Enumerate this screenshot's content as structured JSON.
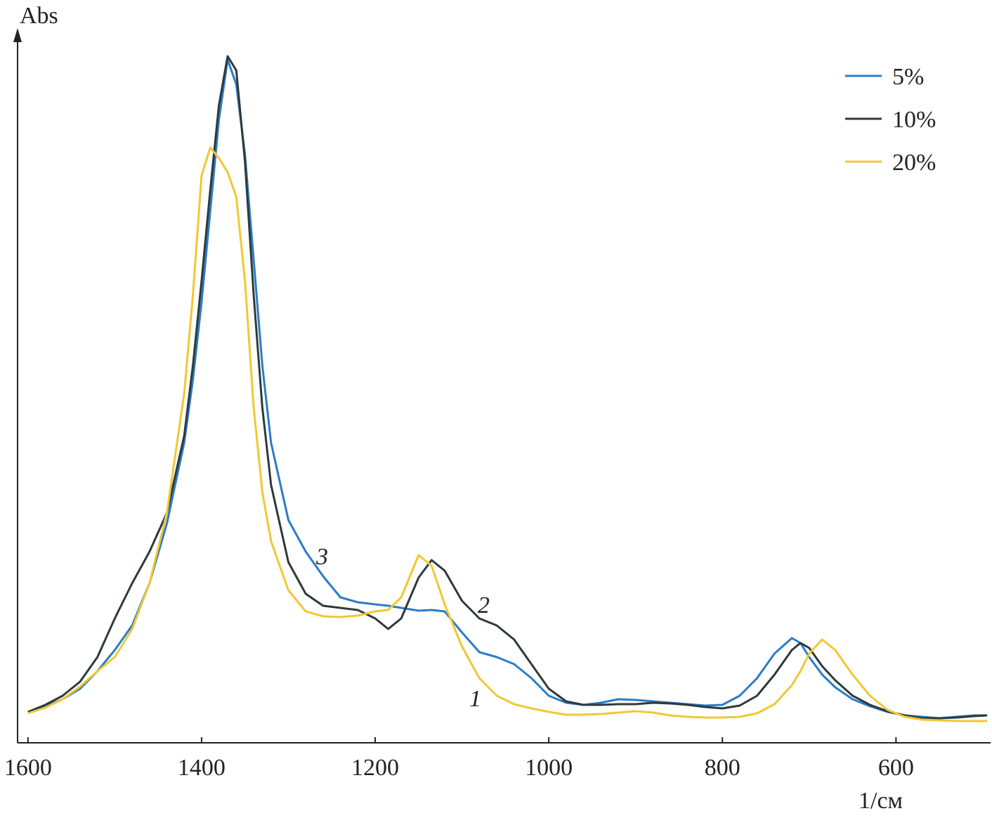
{
  "chart_data": {
    "type": "line",
    "y_label": "Abs",
    "x_label": "1/см",
    "xlim": [
      1612,
      491
    ],
    "ylim": [
      0,
      1
    ],
    "xticks": [
      1600,
      1400,
      1200,
      1000,
      800,
      600
    ],
    "legend": "top-right",
    "annotations": [
      "1",
      "2",
      "3"
    ],
    "x": [
      1600,
      1580,
      1560,
      1540,
      1520,
      1500,
      1480,
      1460,
      1440,
      1420,
      1410,
      1400,
      1390,
      1380,
      1370,
      1360,
      1350,
      1340,
      1330,
      1320,
      1300,
      1280,
      1260,
      1240,
      1220,
      1200,
      1185,
      1170,
      1150,
      1135,
      1120,
      1100,
      1080,
      1060,
      1040,
      1020,
      1000,
      980,
      960,
      940,
      920,
      900,
      880,
      860,
      840,
      820,
      800,
      780,
      760,
      740,
      720,
      710,
      700,
      685,
      670,
      650,
      630,
      610,
      590,
      570,
      550,
      530,
      510,
      495
    ],
    "series": [
      {
        "name": "5%",
        "color": "#2a7cc7",
        "values": [
          0.044,
          0.052,
          0.062,
          0.077,
          0.102,
          0.132,
          0.167,
          0.227,
          0.312,
          0.427,
          0.517,
          0.627,
          0.757,
          0.887,
          0.972,
          0.937,
          0.837,
          0.687,
          0.537,
          0.427,
          0.317,
          0.272,
          0.237,
          0.207,
          0.2,
          0.197,
          0.195,
          0.192,
          0.188,
          0.189,
          0.187,
          0.157,
          0.129,
          0.122,
          0.112,
          0.092,
          0.067,
          0.057,
          0.054,
          0.057,
          0.062,
          0.061,
          0.059,
          0.057,
          0.055,
          0.053,
          0.054,
          0.067,
          0.092,
          0.127,
          0.149,
          0.142,
          0.122,
          0.097,
          0.079,
          0.062,
          0.052,
          0.044,
          0.039,
          0.037,
          0.035,
          0.037,
          0.039,
          0.039
        ]
      },
      {
        "name": "10%",
        "color": "#2d3a3c",
        "values": [
          0.044,
          0.054,
          0.067,
          0.087,
          0.122,
          0.177,
          0.227,
          0.272,
          0.327,
          0.437,
          0.537,
          0.657,
          0.787,
          0.907,
          0.977,
          0.957,
          0.827,
          0.637,
          0.477,
          0.367,
          0.257,
          0.212,
          0.195,
          0.192,
          0.189,
          0.177,
          0.162,
          0.177,
          0.235,
          0.26,
          0.245,
          0.202,
          0.177,
          0.167,
          0.147,
          0.112,
          0.077,
          0.059,
          0.054,
          0.054,
          0.055,
          0.055,
          0.057,
          0.056,
          0.054,
          0.051,
          0.049,
          0.053,
          0.067,
          0.097,
          0.132,
          0.142,
          0.135,
          0.109,
          0.089,
          0.067,
          0.054,
          0.045,
          0.039,
          0.035,
          0.035,
          0.036,
          0.038,
          0.039
        ]
      },
      {
        "name": "20%",
        "color": "#f1c832",
        "values": [
          0.042,
          0.05,
          0.062,
          0.08,
          0.102,
          0.122,
          0.162,
          0.227,
          0.327,
          0.497,
          0.637,
          0.807,
          0.847,
          0.832,
          0.812,
          0.777,
          0.657,
          0.477,
          0.357,
          0.287,
          0.217,
          0.187,
          0.18,
          0.179,
          0.181,
          0.187,
          0.189,
          0.207,
          0.267,
          0.252,
          0.197,
          0.137,
          0.092,
          0.067,
          0.055,
          0.049,
          0.044,
          0.04,
          0.04,
          0.041,
          0.043,
          0.045,
          0.043,
          0.039,
          0.037,
          0.036,
          0.036,
          0.037,
          0.042,
          0.055,
          0.082,
          0.102,
          0.127,
          0.147,
          0.132,
          0.097,
          0.067,
          0.047,
          0.037,
          0.033,
          0.032,
          0.031,
          0.031,
          0.031
        ]
      }
    ]
  }
}
